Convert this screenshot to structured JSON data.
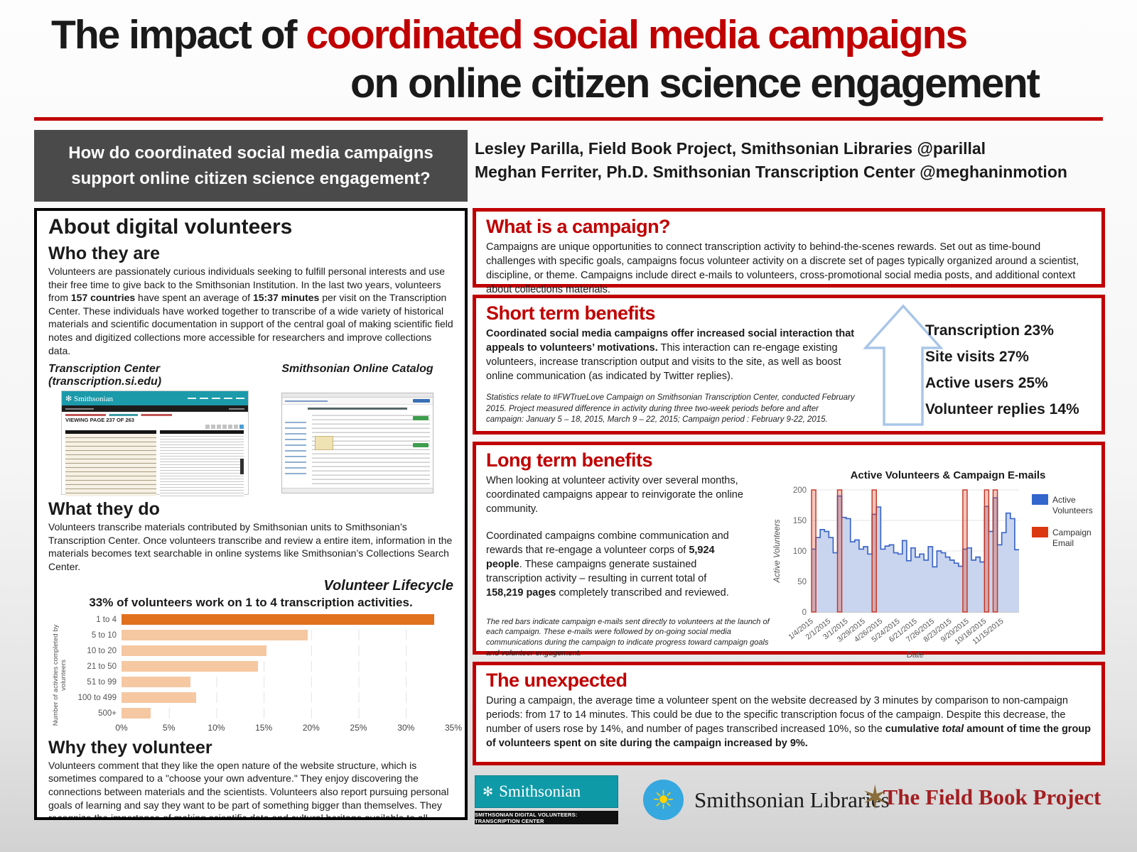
{
  "title": {
    "prefix": "The impact of ",
    "accent": "coordinated social media campaigns",
    "line2": "on online citizen science engagement"
  },
  "question_box": {
    "line1": "How do coordinated social media campaigns",
    "line2": "support online citizen science engagement?"
  },
  "authors": {
    "line1": "Lesley Parilla, Field Book Project, Smithsonian Libraries @parillal",
    "line2": "Meghan Ferriter, Ph.D. Smithsonian Transcription Center  @meghaninmotion"
  },
  "about": {
    "heading": "About digital volunteers",
    "who_heading": "Who they are",
    "who_body": [
      {
        "t": "Volunteers are passionately curious individuals seeking to fulfill personal interests and use their free time to give back to the Smithsonian Institution. In the last two years, volunteers from "
      },
      {
        "t": "157 countries",
        "b": true
      },
      {
        "t": " have spent an average of "
      },
      {
        "t": "15:37 minutes",
        "b": true
      },
      {
        "t": " per visit on the Transcription Center. These individuals have worked together to transcribe of a wide variety of historical materials and scientific documentation in support of the central goal of making scientific field notes and digitized collections more accessible for researchers and improve collections data."
      }
    ],
    "screenshot_left_caption": "Transcription Center (transcription.si.edu)",
    "screenshot_right_caption": "Smithsonian Online Catalog",
    "tc_thumb_brand": "Smithsonian",
    "tc_thumb_viewing": "VIEWING PAGE 237 OF 263",
    "what_heading": "What they do",
    "what_body": "Volunteers transcribe materials contributed by Smithsonian units to Smithsonian’s Transcription Center.  Once volunteers transcribe and review a entire item, information in the materials becomes text searchable in online systems like Smithsonian’s Collections Search Center.",
    "lifecycle_label": "Volunteer Lifecycle",
    "why_heading": "Why they volunteer",
    "why_body": "Volunteers comment that they like the open nature of the website structure, which is sometimes compared to a \"choose your own adventure.\"  They enjoy discovering the connections between materials and the scientists. Volunteers also report pursuing personal goals of learning and say they want to be part of something bigger than themselves. They recognize the importance of making scientific data and cultural heritage available to all. Furthermore, they enjoy the challenge of deciphering text and the feelings of success when completing projects together as part of a campaign activity."
  },
  "campaign_box": {
    "heading": "What is a campaign?",
    "body": "Campaigns are unique opportunities to connect transcription activity to behind-the-scenes rewards. Set out as time-bound challenges with specific goals, campaigns focus volunteer activity on a discrete set of pages typically organized around a scientist, discipline, or theme. Campaigns include direct e-mails to volunteers, cross-promotional social media posts, and additional context about collections materials."
  },
  "short_term": {
    "heading": "Short term benefits",
    "body": [
      {
        "t": "Coordinated social media campaigns offer increased social interaction that appeals to volunteers’ motivations.",
        "b": true
      },
      {
        "t": " This interaction can re-engage existing volunteers, increase transcription output and visits to the site, as well as boost online communication (as indicated by Twitter replies)."
      }
    ],
    "footnote": "Statistics relate to #FWTrueLove Campaign on Smithsonian Transcription Center, conducted February 2015.  Project measured difference in activity during three two-week periods before and after campaign: January 5 – 18, 2015, March 9 – 22, 2015; Campaign period : February 9-22, 2015.",
    "stats": [
      "Transcription 23%",
      "Site visits 27%",
      "Active users 25%",
      "Volunteer replies 14%"
    ]
  },
  "long_term": {
    "heading": "Long term benefits",
    "para1": "When looking at volunteer activity over several months, coordinated campaigns appear to reinvigorate the online community.",
    "para2": [
      {
        "t": "Coordinated campaigns combine communication and rewards that re-engage a volunteer corps of "
      },
      {
        "t": "5,924 people",
        "b": true
      },
      {
        "t": ". These campaigns generate sustained transcription activity – resulting in current total of "
      },
      {
        "t": "158,219 pages",
        "b": true
      },
      {
        "t": " completely transcribed and reviewed."
      }
    ],
    "footnote": "The red bars indicate campaign e-mails sent directly to volunteers at the launch of each campaign. These e-mails were followed by on-going social media communications during the campaign to indicate progress toward campaign goals and volunteer engagement."
  },
  "unexpected": {
    "heading": "The unexpected",
    "body": [
      {
        "t": "During a campaign, the average time a volunteer spent on the website decreased by 3 minutes by comparison to non-campaign periods: from 17 to 14 minutes. This could be due to the specific transcription focus of the campaign. Despite this decrease, the number of users rose by 14%, and number of pages transcribed increased 10%, so the "
      },
      {
        "t": "cumulative ",
        "b": true
      },
      {
        "t": "total",
        "b": true,
        "i": true
      },
      {
        "t": " amount of time the group of volunteers spent on site during the campaign increased by 9%.",
        "b": true
      }
    ]
  },
  "footer": {
    "tc_logo_brand": "Smithsonian",
    "tc_logo_sub": "SMITHSONIAN DIGITAL VOLUNTEERS: TRANSCRIPTION CENTER",
    "libraries_name": "Smithsonian Libraries",
    "fieldbook_name": "The Field Book Project"
  },
  "icons": {
    "smithsonian_sun": "✻",
    "libraries_sun": "☀",
    "fieldbook_star": "✶"
  },
  "colors": {
    "accent_red": "#C00000",
    "question_gray": "#4a4a4a",
    "tc_teal": "#0F9AA8",
    "bar_orange": "#E2711D",
    "bar_light": "#F5C8A2",
    "line_blue": "#3B66C8",
    "area_blue": "#C9D4EE",
    "email_red": "#DC3912",
    "arrow_blue": "#A9C6E8"
  },
  "chart_data": [
    {
      "type": "bar",
      "title": "33% of volunteers work on 1 to 4 transcription activities.",
      "context_label": "Volunteer Lifecycle",
      "categories": [
        "1 to 4",
        "5 to 10",
        "10 to 20",
        "21 to 50",
        "51 to 99",
        "100 to 499",
        "500+"
      ],
      "values": [
        33,
        19.6,
        15.3,
        14.4,
        7.3,
        7.9,
        3.1
      ],
      "highlight_index": 0,
      "xlabel": "",
      "ylabel": "Number of activities completed by volunteers",
      "xlim": [
        0,
        35
      ],
      "xticks": [
        "0%",
        "5%",
        "10%",
        "15%",
        "20%",
        "25%",
        "30%",
        "35%"
      ],
      "grid": true,
      "orientation": "horizontal"
    },
    {
      "type": "area",
      "title": "Active Volunteers & Campaign E-mails",
      "xlabel": "Date",
      "ylabel": "Active Volunteers",
      "ylim": [
        0,
        200
      ],
      "yticks": [
        0,
        50,
        100,
        150,
        200
      ],
      "x_tick_labels": [
        "1/4/2015",
        "2/1/2015",
        "3/1/2015",
        "3/29/2015",
        "4/26/2015",
        "5/24/2015",
        "6/21/2015",
        "7/26/2015",
        "8/23/2015",
        "9/20/2015",
        "10/18/2015",
        "11/15/2015"
      ],
      "x_tick_every": 4,
      "legend_position": "right",
      "series": [
        {
          "name": "Active Volunteers",
          "style": "step-area",
          "values": [
            103,
            122,
            135,
            132,
            122,
            97,
            190,
            155,
            153,
            115,
            118,
            103,
            107,
            95,
            160,
            172,
            103,
            108,
            110,
            97,
            95,
            117,
            84,
            105,
            90,
            95,
            85,
            107,
            74,
            100,
            97,
            90,
            85,
            80,
            75,
            103,
            105,
            85,
            90,
            82,
            173,
            132,
            187,
            110,
            130,
            162,
            153,
            102
          ]
        },
        {
          "name": "Campaign Email",
          "style": "full-height-bar",
          "campaign_week_indices": [
            0,
            6,
            14,
            35,
            40,
            42
          ]
        }
      ]
    }
  ]
}
